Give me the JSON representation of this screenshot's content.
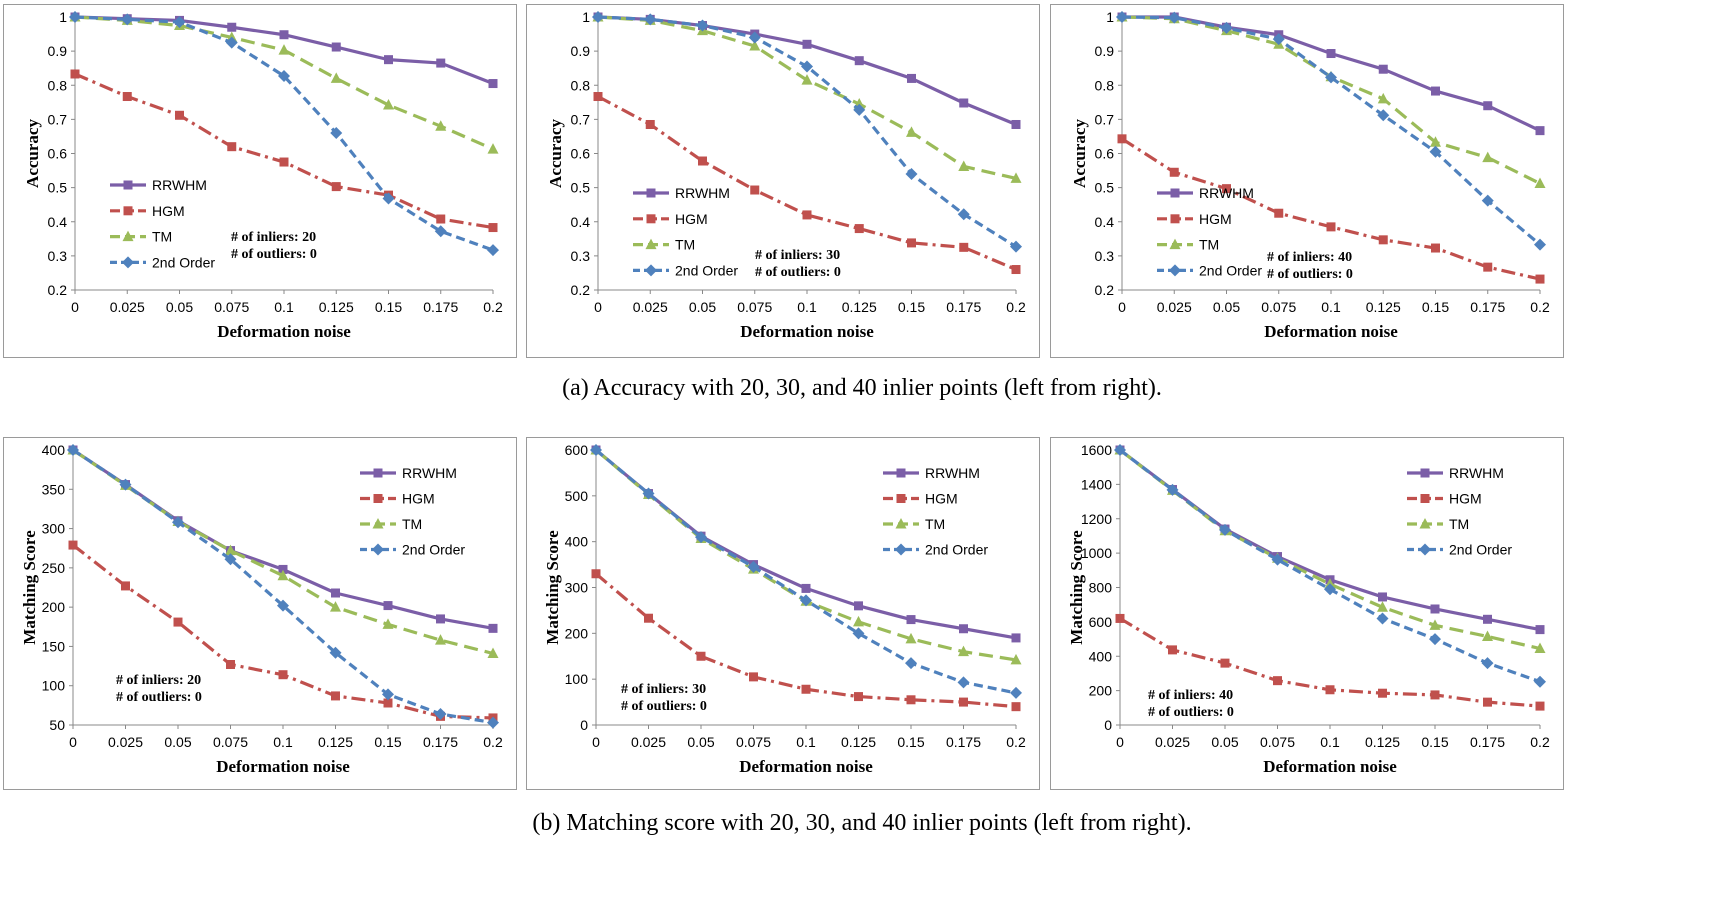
{
  "captions": {
    "top": "(a)  Accuracy with 20, 30, and 40 inlier points (left from right).",
    "bottom": "(b)  Matching score with 20, 30, and 40 inlier points (left from right)."
  },
  "style": {
    "colors": {
      "RRWHM": "#7b5ea7",
      "HGM": "#c0504d",
      "TM": "#9bbb59",
      "2nd Order": "#4f81bd"
    },
    "dash": {
      "RRWHM": "",
      "HGM": "14,5,3,5",
      "TM": "14,7",
      "2nd Order": "9,5"
    },
    "markers": {
      "RRWHM": "square",
      "HGM": "square",
      "TM": "triangle",
      "2nd Order": "diamond"
    }
  },
  "chart_data": [
    {
      "type": "line",
      "x": [
        0,
        0.025,
        0.05,
        0.075,
        0.1,
        0.125,
        0.15,
        0.175,
        0.2
      ],
      "xticks": [
        "0",
        "0.025",
        "0.05",
        "0.075",
        "0.1",
        "0.125",
        "0.15",
        "0.175",
        "0.2"
      ],
      "xlabel": "Deformation noise",
      "ylabel": "Accuracy",
      "ylim": [
        0.2,
        1
      ],
      "yticks": [
        "0.2",
        "0.3",
        "0.4",
        "0.5",
        "0.6",
        "0.7",
        "0.8",
        "0.9",
        "1"
      ],
      "legend": "left-middle",
      "annotation": [
        "# of inliers: 20",
        "# of outliers: 0"
      ],
      "series": [
        {
          "name": "RRWHM",
          "values": [
            1,
            0.995,
            0.99,
            0.97,
            0.948,
            0.912,
            0.875,
            0.865,
            0.805
          ]
        },
        {
          "name": "HGM",
          "values": [
            0.833,
            0.767,
            0.712,
            0.62,
            0.575,
            0.503,
            0.478,
            0.408,
            0.383
          ]
        },
        {
          "name": "TM",
          "values": [
            1,
            0.99,
            0.975,
            0.94,
            0.903,
            0.82,
            0.742,
            0.68,
            0.613
          ]
        },
        {
          "name": "2nd Order",
          "values": [
            1,
            0.993,
            0.985,
            0.925,
            0.827,
            0.66,
            0.468,
            0.372,
            0.317
          ]
        }
      ]
    },
    {
      "type": "line",
      "x": [
        0,
        0.025,
        0.05,
        0.075,
        0.1,
        0.125,
        0.15,
        0.175,
        0.2
      ],
      "xticks": [
        "0",
        "0.025",
        "0.05",
        "0.075",
        "0.1",
        "0.125",
        "0.15",
        "0.175",
        "0.2"
      ],
      "xlabel": "Deformation noise",
      "ylabel": "Accuracy",
      "ylim": [
        0.2,
        1
      ],
      "yticks": [
        "0.2",
        "0.3",
        "0.4",
        "0.5",
        "0.6",
        "0.7",
        "0.8",
        "0.9",
        "1"
      ],
      "legend": "left-middle",
      "annotation": [
        "# of inliers: 30",
        "# of outliers: 0"
      ],
      "series": [
        {
          "name": "RRWHM",
          "values": [
            1,
            0.993,
            0.975,
            0.95,
            0.92,
            0.872,
            0.82,
            0.748,
            0.685
          ]
        },
        {
          "name": "HGM",
          "values": [
            0.767,
            0.685,
            0.578,
            0.493,
            0.42,
            0.38,
            0.338,
            0.325,
            0.26
          ]
        },
        {
          "name": "TM",
          "values": [
            1,
            0.99,
            0.96,
            0.915,
            0.815,
            0.745,
            0.662,
            0.562,
            0.527
          ]
        },
        {
          "name": "2nd Order",
          "values": [
            1,
            0.993,
            0.975,
            0.94,
            0.855,
            0.728,
            0.54,
            0.422,
            0.327
          ]
        }
      ]
    },
    {
      "type": "line",
      "x": [
        0,
        0.025,
        0.05,
        0.075,
        0.1,
        0.125,
        0.15,
        0.175,
        0.2
      ],
      "xticks": [
        "0",
        "0.025",
        "0.05",
        "0.075",
        "0.1",
        "0.125",
        "0.15",
        "0.175",
        "0.2"
      ],
      "xlabel": "Deformation noise",
      "ylabel": "Accuracy",
      "ylim": [
        0.2,
        1
      ],
      "yticks": [
        "0.2",
        "0.3",
        "0.4",
        "0.5",
        "0.6",
        "0.7",
        "0.8",
        "0.9",
        "1"
      ],
      "legend": "left-middle",
      "annotation": [
        "# of inliers: 40",
        "# of outliers: 0"
      ],
      "series": [
        {
          "name": "RRWHM",
          "values": [
            1,
            1,
            0.97,
            0.948,
            0.893,
            0.847,
            0.783,
            0.74,
            0.667
          ]
        },
        {
          "name": "HGM",
          "values": [
            0.643,
            0.545,
            0.497,
            0.425,
            0.385,
            0.347,
            0.323,
            0.267,
            0.232
          ]
        },
        {
          "name": "TM",
          "values": [
            1,
            0.995,
            0.96,
            0.92,
            0.825,
            0.76,
            0.633,
            0.588,
            0.512
          ]
        },
        {
          "name": "2nd Order",
          "values": [
            1,
            0.998,
            0.968,
            0.935,
            0.823,
            0.712,
            0.605,
            0.462,
            0.333
          ]
        }
      ]
    },
    {
      "type": "line",
      "x": [
        0,
        0.025,
        0.05,
        0.075,
        0.1,
        0.125,
        0.15,
        0.175,
        0.2
      ],
      "xticks": [
        "0",
        "0.025",
        "0.05",
        "0.075",
        "0.1",
        "0.125",
        "0.15",
        "0.175",
        "0.2"
      ],
      "xlabel": "Deformation noise",
      "ylabel": "Matching Score",
      "ylim": [
        50,
        400
      ],
      "yticks": [
        "50",
        "100",
        "150",
        "200",
        "250",
        "300",
        "350",
        "400"
      ],
      "legend": "top-right",
      "annotation": [
        "# of inliers: 20",
        "# of outliers: 0"
      ],
      "series": [
        {
          "name": "RRWHM",
          "values": [
            400,
            356,
            310,
            272,
            248,
            218,
            202,
            185,
            173
          ]
        },
        {
          "name": "HGM",
          "values": [
            279,
            227,
            181,
            127,
            114,
            87,
            78,
            61,
            59
          ]
        },
        {
          "name": "TM",
          "values": [
            400,
            355,
            309,
            272,
            240,
            200,
            178,
            158,
            141
          ]
        },
        {
          "name": "2nd Order",
          "values": [
            400,
            356,
            308,
            261,
            202,
            142,
            89,
            64,
            53
          ]
        }
      ]
    },
    {
      "type": "line",
      "x": [
        0,
        0.025,
        0.05,
        0.075,
        0.1,
        0.125,
        0.15,
        0.175,
        0.2
      ],
      "xticks": [
        "0",
        "0.025",
        "0.05",
        "0.075",
        "0.1",
        "0.125",
        "0.15",
        "0.175",
        "0.2"
      ],
      "xlabel": "Deformation noise",
      "ylabel": "Matching Score",
      "ylim": [
        0,
        600
      ],
      "yticks": [
        "0",
        "100",
        "200",
        "300",
        "400",
        "500",
        "600"
      ],
      "legend": "top-right",
      "annotation": [
        "# of inliers: 30",
        "# of outliers: 0"
      ],
      "series": [
        {
          "name": "RRWHM",
          "values": [
            600,
            505,
            412,
            350,
            298,
            260,
            230,
            210,
            190
          ]
        },
        {
          "name": "HGM",
          "values": [
            330,
            233,
            150,
            105,
            78,
            62,
            55,
            50,
            40
          ]
        },
        {
          "name": "TM",
          "values": [
            600,
            503,
            407,
            340,
            270,
            225,
            188,
            160,
            142
          ]
        },
        {
          "name": "2nd Order",
          "values": [
            600,
            505,
            410,
            345,
            272,
            200,
            135,
            93,
            70
          ]
        }
      ]
    },
    {
      "type": "line",
      "x": [
        0,
        0.025,
        0.05,
        0.075,
        0.1,
        0.125,
        0.15,
        0.175,
        0.2
      ],
      "xticks": [
        "0",
        "0.025",
        "0.05",
        "0.075",
        "0.1",
        "0.125",
        "0.15",
        "0.175",
        "0.2"
      ],
      "xlabel": "Deformation noise",
      "ylabel": "Matching Score",
      "ylim": [
        0,
        1600
      ],
      "yticks": [
        "0",
        "200",
        "400",
        "600",
        "800",
        "1000",
        "1200",
        "1400",
        "1600"
      ],
      "legend": "top-right",
      "annotation": [
        "# of inliers: 40",
        "# of outliers: 0"
      ],
      "series": [
        {
          "name": "RRWHM",
          "values": [
            1600,
            1370,
            1140,
            980,
            845,
            745,
            675,
            615,
            555
          ]
        },
        {
          "name": "HGM",
          "values": [
            620,
            437,
            360,
            258,
            205,
            185,
            175,
            133,
            110
          ]
        },
        {
          "name": "TM",
          "values": [
            1600,
            1365,
            1130,
            970,
            820,
            685,
            580,
            515,
            445
          ]
        },
        {
          "name": "2nd Order",
          "values": [
            1600,
            1368,
            1135,
            962,
            790,
            620,
            500,
            360,
            252
          ]
        }
      ]
    }
  ]
}
